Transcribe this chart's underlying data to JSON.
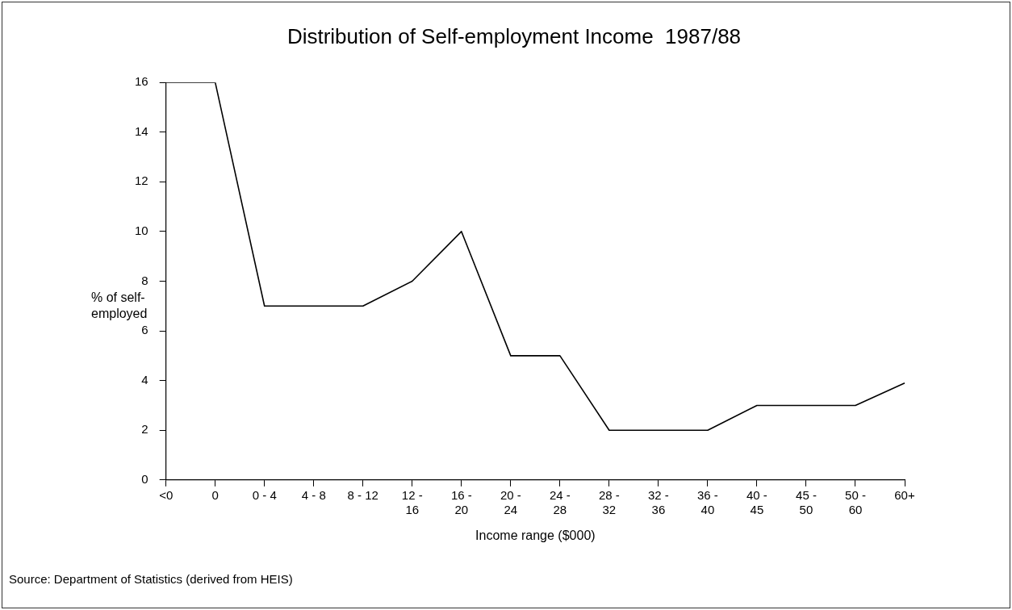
{
  "chart_data": {
    "type": "line",
    "title": "Distribution of Self-employment Income  1987/88",
    "xlabel": "Income range ($000)",
    "ylabel": "% of self-employed",
    "categories": [
      "<0",
      "0",
      "0 - 4",
      "4 - 8",
      "8 - 12",
      "12 - 16",
      "16 - 20",
      "20 - 24",
      "24 - 28",
      "28 - 32",
      "32 - 36",
      "36 - 40",
      "40 - 45",
      "45 - 50",
      "50 - 60",
      "60+"
    ],
    "series": [
      {
        "color": "#000000",
        "values": [
          16,
          16,
          7,
          7,
          7,
          8,
          10,
          5,
          5,
          2,
          2,
          2,
          3,
          3,
          3,
          3.9
        ]
      }
    ],
    "ylim": [
      0,
      16
    ],
    "yticks": [
      0,
      2,
      4,
      6,
      8,
      10,
      12,
      14,
      16
    ],
    "grid": false,
    "legend": false,
    "marker": "none",
    "line_style": "solid",
    "annotations": [
      "Source: Department of Statistics (derived from HEIS)"
    ]
  }
}
